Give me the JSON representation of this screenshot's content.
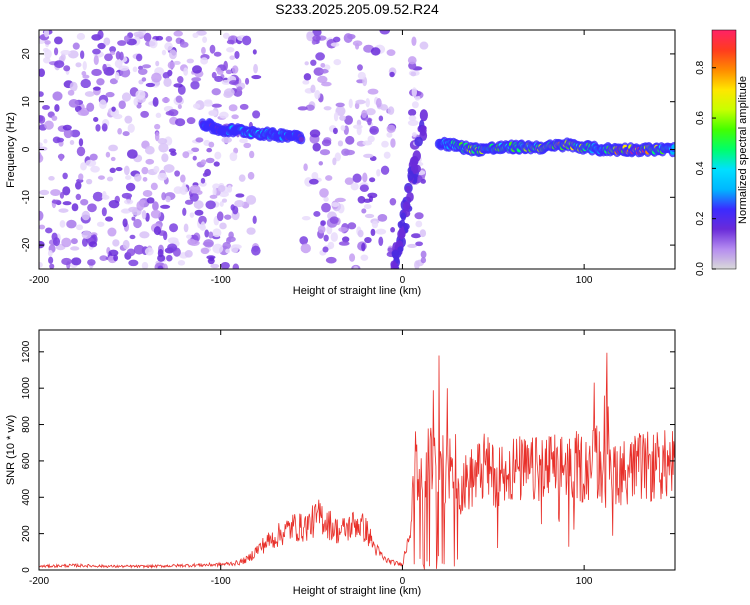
{
  "colors": {
    "line_series": "#e8302a",
    "colorbar_stops": [
      "#d9d9d9",
      "#b58cf0",
      "#6a2bd9",
      "#3b2bff",
      "#00b7ff",
      "#00e0ff",
      "#00ff6a",
      "#44ff00",
      "#c8ff00",
      "#ffe600",
      "#ff8a00",
      "#ff3b1f",
      "#ff2266"
    ]
  },
  "chart_data": [
    {
      "type": "heatmap",
      "title": "S233.2025.205.09.52.R24",
      "xlabel": "Height of straight line (km)",
      "ylabel": "Frequency (Hz)",
      "xlim": [
        -200,
        150
      ],
      "ylim": [
        -25,
        25
      ],
      "x_ticks": [
        -200,
        -100,
        0,
        100
      ],
      "y_ticks": [
        -20,
        -10,
        0,
        10,
        20
      ],
      "colorbar": {
        "label": "Normalized spectral amplitude",
        "range": [
          0,
          0.95
        ],
        "ticks": [
          0.0,
          0.2,
          0.4,
          0.6,
          0.8
        ]
      },
      "ridge": {
        "x": [
          -110,
          -100,
          -90,
          -80,
          -70,
          -60,
          -55,
          20,
          40,
          60,
          80,
          90,
          100,
          110,
          120,
          130,
          140,
          150
        ],
        "frequency": [
          5.5,
          4.0,
          4.0,
          3.5,
          3.0,
          3.0,
          2.5,
          1.5,
          0.0,
          0.5,
          0.5,
          1.0,
          0.5,
          0.0,
          0.0,
          0.0,
          0.0,
          0.0
        ],
        "amplitude": [
          0.25,
          0.2,
          0.3,
          0.35,
          0.3,
          0.25,
          0.2,
          0.3,
          0.6,
          0.5,
          0.6,
          0.7,
          0.5,
          0.35,
          0.8,
          0.85,
          0.6,
          0.35
        ]
      }
    },
    {
      "type": "line",
      "title": "",
      "xlabel": "Height of straight line (km)",
      "ylabel": "SNR (10 * v/v)",
      "xlim": [
        -200,
        150
      ],
      "ylim": [
        0,
        1320
      ],
      "x_ticks": [
        -200,
        -100,
        0,
        100
      ],
      "y_ticks": [
        0,
        200,
        400,
        600,
        800,
        1000,
        1200
      ],
      "series": [
        {
          "x": [
            -200,
            -180,
            -160,
            -140,
            -120,
            -100,
            -90,
            -85,
            -80,
            -75,
            -70,
            -65,
            -60,
            -55,
            -50,
            -45,
            -40,
            -35,
            -30,
            -25,
            -20,
            -15,
            -10,
            -5,
            0,
            2,
            5,
            8,
            10,
            12,
            15,
            18,
            20,
            22,
            25,
            28,
            30,
            35,
            40,
            45,
            50,
            55,
            60,
            70,
            80,
            90,
            100,
            105,
            108,
            110,
            112,
            115,
            120,
            130,
            140,
            150
          ],
          "y": [
            20,
            25,
            20,
            20,
            25,
            30,
            40,
            60,
            110,
            150,
            180,
            210,
            240,
            230,
            260,
            300,
            250,
            210,
            230,
            260,
            220,
            120,
            60,
            40,
            30,
            120,
            300,
            620,
            350,
            400,
            650,
            550,
            700,
            600,
            500,
            550,
            450,
            480,
            520,
            560,
            520,
            540,
            560,
            540,
            560,
            580,
            560,
            590,
            600,
            540,
            520,
            560,
            540,
            560,
            570,
            580
          ]
        }
      ]
    }
  ]
}
